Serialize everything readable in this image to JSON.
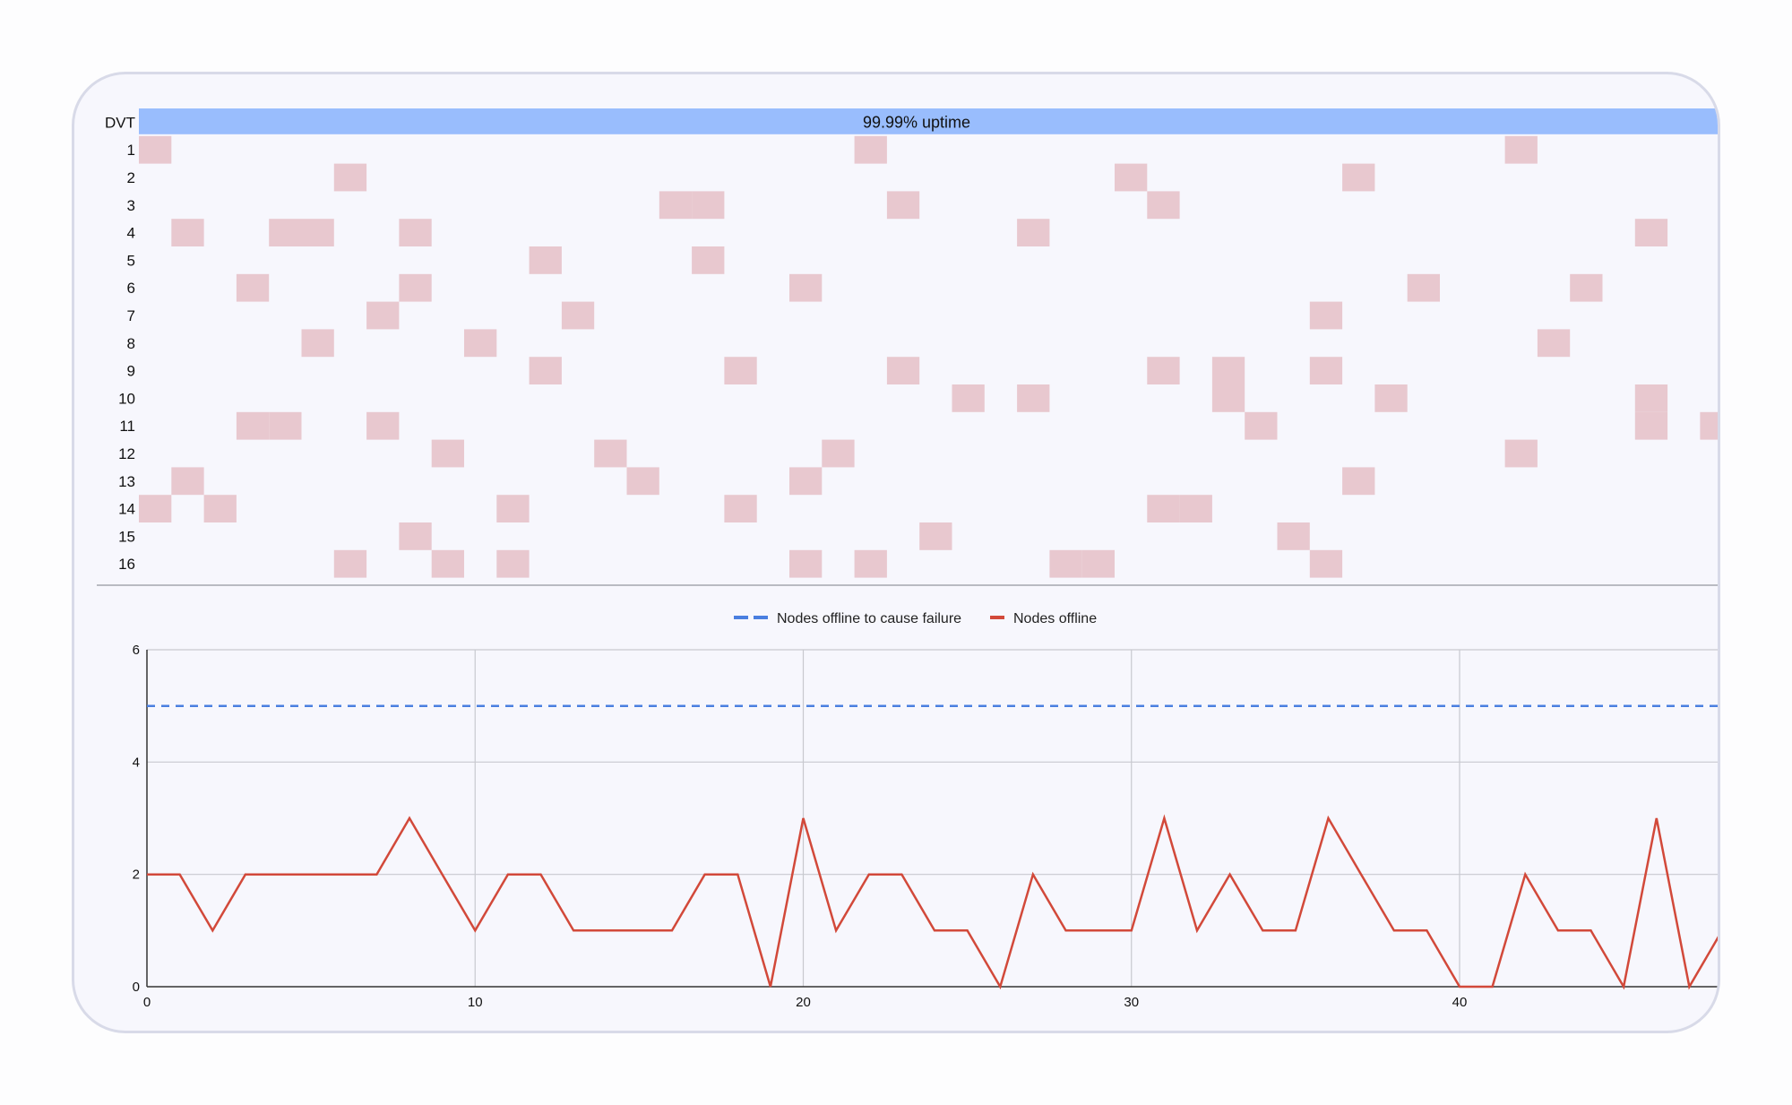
{
  "chart_data": [
    {
      "type": "heatmap",
      "title": "",
      "x_range": [
        0,
        48
      ],
      "summary_row": {
        "label": "DVT",
        "text": "99.99% uptime"
      },
      "rows": [
        {
          "label": "1",
          "offline": [
            0,
            22,
            42
          ]
        },
        {
          "label": "2",
          "offline": [
            6,
            30,
            37
          ]
        },
        {
          "label": "3",
          "offline": [
            16,
            17,
            23,
            31
          ]
        },
        {
          "label": "4",
          "offline": [
            1,
            4,
            5,
            8,
            27,
            46
          ]
        },
        {
          "label": "5",
          "offline": [
            12,
            17
          ]
        },
        {
          "label": "6",
          "offline": [
            3,
            8,
            20,
            39,
            44
          ]
        },
        {
          "label": "7",
          "offline": [
            7,
            13,
            36
          ]
        },
        {
          "label": "8",
          "offline": [
            5,
            10,
            43
          ]
        },
        {
          "label": "9",
          "offline": [
            12,
            18,
            23,
            31,
            33,
            36
          ]
        },
        {
          "label": "10",
          "offline": [
            25,
            27,
            33,
            38,
            46
          ]
        },
        {
          "label": "11",
          "offline": [
            3,
            4,
            7,
            34,
            46,
            48
          ]
        },
        {
          "label": "12",
          "offline": [
            9,
            14,
            21,
            42
          ]
        },
        {
          "label": "13",
          "offline": [
            1,
            15,
            20,
            37
          ]
        },
        {
          "label": "14",
          "offline": [
            0,
            2,
            11,
            18,
            31,
            32
          ]
        },
        {
          "label": "15",
          "offline": [
            8,
            24,
            35
          ]
        },
        {
          "label": "16",
          "offline": [
            6,
            9,
            11,
            20,
            22,
            28,
            29,
            36
          ]
        }
      ],
      "colors": {
        "offline": "#e8c8cf",
        "summary": "#99bdfd"
      }
    },
    {
      "type": "line",
      "title": "",
      "xlabel": "",
      "ylabel": "",
      "xlim": [
        0,
        48
      ],
      "ylim": [
        0,
        6
      ],
      "x_ticks": [
        0,
        10,
        20,
        30,
        40
      ],
      "y_ticks": [
        0,
        2,
        4,
        6
      ],
      "grid": true,
      "legend_position": "top-center",
      "series": [
        {
          "name": "Nodes offline to cause failure",
          "style": "dashed",
          "color": "#4a7fe0",
          "x": [
            0,
            48
          ],
          "y": [
            5,
            5
          ]
        },
        {
          "name": "Nodes offline",
          "style": "solid",
          "color": "#d2493a",
          "x": [
            0,
            1,
            2,
            3,
            4,
            5,
            6,
            7,
            8,
            9,
            10,
            11,
            12,
            13,
            14,
            15,
            16,
            17,
            18,
            19,
            20,
            21,
            22,
            23,
            24,
            25,
            26,
            27,
            28,
            29,
            30,
            31,
            32,
            33,
            34,
            35,
            36,
            37,
            38,
            39,
            40,
            41,
            42,
            43,
            44,
            45,
            46,
            47,
            48
          ],
          "y": [
            2,
            2,
            1,
            2,
            2,
            2,
            2,
            2,
            3,
            2,
            1,
            2,
            2,
            1,
            1,
            1,
            1,
            2,
            2,
            0,
            3,
            1,
            2,
            2,
            1,
            1,
            0,
            2,
            1,
            1,
            1,
            3,
            1,
            2,
            1,
            1,
            3,
            2,
            1,
            1,
            0,
            0,
            2,
            1,
            1,
            0,
            3,
            0,
            1
          ]
        }
      ]
    }
  ]
}
